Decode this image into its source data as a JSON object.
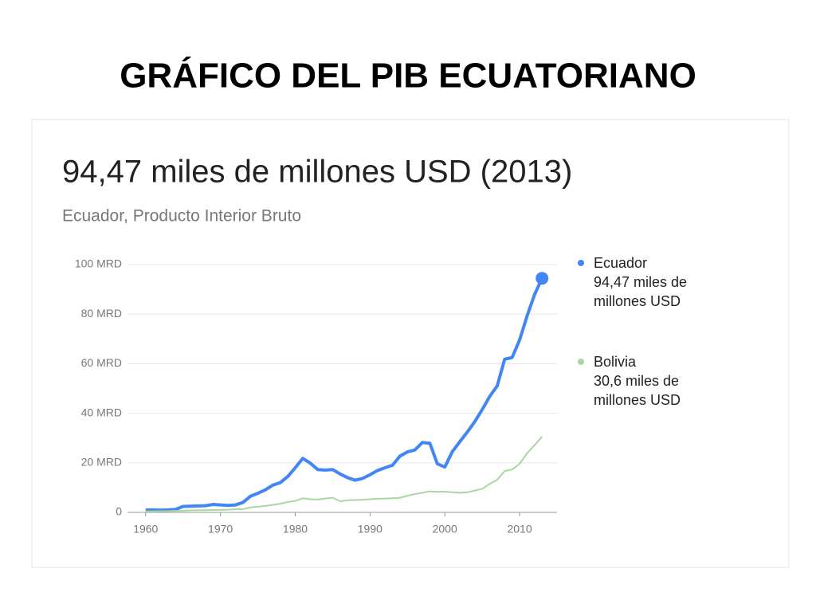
{
  "slide_title": "GRÁFICO DEL PIB ECUATORIANO",
  "chart_data": {
    "type": "line",
    "title": "94,47 miles de millones USD (2013)",
    "subtitle": "Ecuador, Producto Interior Bruto",
    "x": [
      1960,
      1961,
      1962,
      1963,
      1964,
      1965,
      1966,
      1967,
      1968,
      1969,
      1970,
      1971,
      1972,
      1973,
      1974,
      1975,
      1976,
      1977,
      1978,
      1979,
      1980,
      1981,
      1982,
      1983,
      1984,
      1985,
      1986,
      1987,
      1988,
      1989,
      1990,
      1991,
      1992,
      1993,
      1994,
      1995,
      1996,
      1997,
      1998,
      1999,
      2000,
      2001,
      2002,
      2003,
      2004,
      2005,
      2006,
      2007,
      2008,
      2009,
      2010,
      2011,
      2012,
      2013
    ],
    "series": [
      {
        "name": "Ecuador",
        "label": "94,47 miles de millones USD",
        "color": "#4285f4",
        "width": 4,
        "values": [
          1.0,
          1.0,
          0.9,
          1.0,
          1.2,
          2.4,
          2.5,
          2.6,
          2.7,
          3.2,
          3.0,
          2.8,
          3.0,
          4.0,
          6.5,
          7.7,
          9.1,
          11.0,
          12.0,
          14.5,
          18.0,
          21.8,
          19.9,
          17.3,
          17.1,
          17.3,
          15.5,
          14.0,
          13.0,
          13.7,
          15.2,
          16.9,
          18.0,
          19.0,
          22.7,
          24.4,
          25.2,
          28.2,
          27.9,
          19.6,
          18.3,
          24.5,
          28.5,
          32.4,
          36.6,
          41.5,
          46.8,
          51.0,
          61.8,
          62.5,
          69.6,
          79.3,
          87.9,
          94.47
        ]
      },
      {
        "name": "Bolivia",
        "label": "30,6 miles de millones USD",
        "color": "#a8d8a0",
        "width": 2,
        "values": [
          0.4,
          0.4,
          0.5,
          0.5,
          0.6,
          0.7,
          0.8,
          0.9,
          0.9,
          1.0,
          1.0,
          1.1,
          1.3,
          1.3,
          2.0,
          2.3,
          2.6,
          3.0,
          3.5,
          4.2,
          4.6,
          5.7,
          5.3,
          5.2,
          5.6,
          5.9,
          4.5,
          4.9,
          5.0,
          5.1,
          5.3,
          5.5,
          5.6,
          5.7,
          5.9,
          6.7,
          7.4,
          7.9,
          8.5,
          8.3,
          8.4,
          8.1,
          7.9,
          8.1,
          8.8,
          9.5,
          11.5,
          13.1,
          16.7,
          17.3,
          19.6,
          23.9,
          27.1,
          30.6
        ]
      }
    ],
    "xlim": [
      1958,
      2015
    ],
    "xticks": [
      1960,
      1970,
      1980,
      1990,
      2000,
      2010
    ],
    "ylim": [
      0,
      100
    ],
    "yticks": [
      0,
      {
        "value": 20,
        "label": "20 MRD"
      },
      {
        "value": 40,
        "label": "40 MRD"
      },
      {
        "value": 60,
        "label": "60 MRD"
      },
      {
        "value": 80,
        "label": "80 MRD"
      },
      {
        "value": 100,
        "label": "100 MRD"
      }
    ],
    "grid": true,
    "legend": "right"
  }
}
